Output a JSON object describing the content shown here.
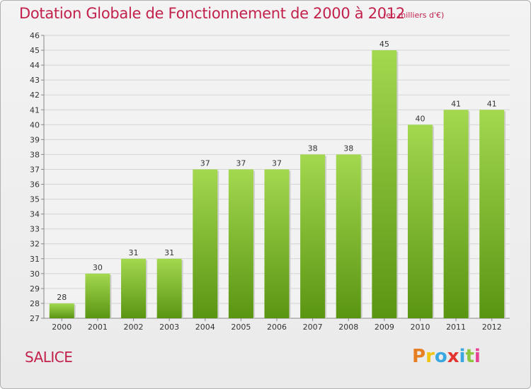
{
  "header": {
    "title": "Dotation Globale de Fonctionnement de 2000 à 2012",
    "subtitle": "(en milliers d'€)"
  },
  "footer": {
    "commune": "SALICE",
    "logo_text": "Proxiti"
  },
  "colors": {
    "accent": "#c2214c",
    "bar_light": "#9dd34b",
    "bar_dark": "#5f9a14"
  },
  "chart_data": {
    "type": "bar",
    "title": "Dotation Globale de Fonctionnement de 2000 à 2012",
    "subtitle": "(en milliers d'€)",
    "categories": [
      "2000",
      "2001",
      "2002",
      "2003",
      "2004",
      "2005",
      "2006",
      "2007",
      "2008",
      "2009",
      "2010",
      "2011",
      "2012"
    ],
    "values": [
      28,
      30,
      31,
      31,
      37,
      37,
      37,
      38,
      38,
      45,
      40,
      41,
      41
    ],
    "data_labels": [
      "28",
      "30",
      "31",
      "31",
      "37",
      "37",
      "37",
      "38",
      "38",
      "45",
      "40",
      "41",
      "41"
    ],
    "yticks": [
      "27",
      "28",
      "29",
      "30",
      "31",
      "32",
      "33",
      "34",
      "35",
      "36",
      "37",
      "38",
      "39",
      "40",
      "41",
      "42",
      "43",
      "44",
      "45",
      "46"
    ],
    "ylim": [
      27,
      46
    ],
    "xlabel": "",
    "ylabel": "",
    "grid": true,
    "legend": "none"
  }
}
